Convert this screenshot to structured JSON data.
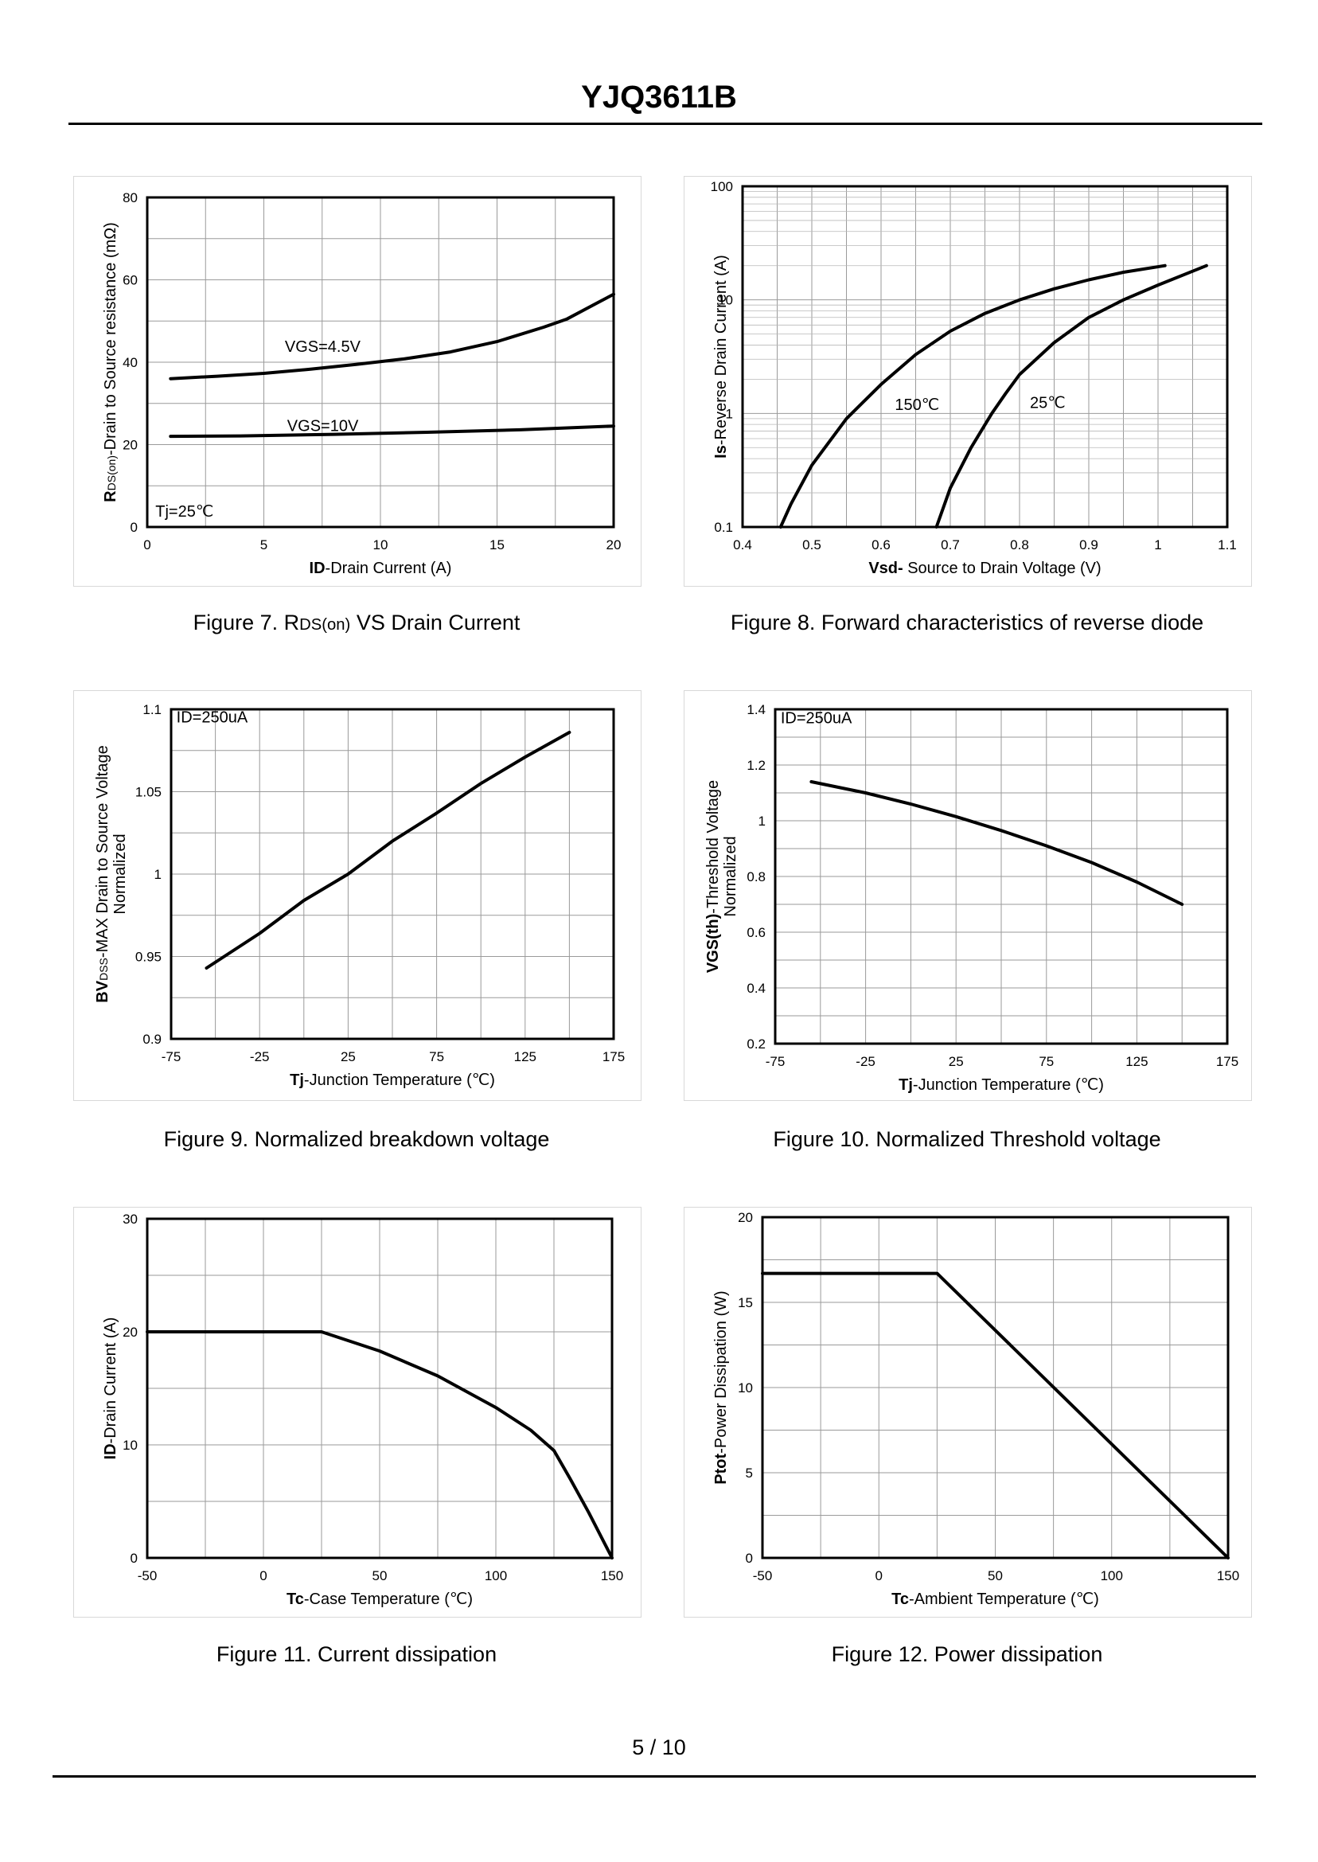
{
  "header": {
    "title": "YJQ3611B"
  },
  "footer": {
    "page": "5 / 10"
  },
  "colors": {
    "curve": "#000000",
    "grid": "#9a9a9a",
    "frame": "#000000"
  },
  "chart_data": [
    {
      "id": "fig7",
      "type": "line",
      "caption": {
        "text": "Figure 7.  RDS(on) VS Drain Current",
        "pre": "Figure 7.  R",
        "sub": "DS(on)",
        "post": " VS Drain Current"
      },
      "xlabel": {
        "bold": "ID",
        "rest": "-Drain Current (A)"
      },
      "ylabel": {
        "bold": "R",
        "sub": "DS(on)",
        "rest": "-Drain to Source resistance (mΩ)"
      },
      "xlim": [
        0,
        20
      ],
      "ylim": [
        0,
        80
      ],
      "xticks": [
        0,
        5,
        10,
        15,
        20
      ],
      "yticks": [
        0,
        20,
        40,
        60,
        80
      ],
      "xgrid": 8,
      "ygrid": 8,
      "annotations": [
        {
          "text": "VGS=4.5V",
          "x": 5.9,
          "y": 42.5
        },
        {
          "text": "VGS=10V",
          "x": 6.0,
          "y": 23.3
        },
        {
          "text": "Tj=25℃",
          "x": 0.35,
          "y": 2.5
        }
      ],
      "series": [
        {
          "label": "VGS=4.5V",
          "x": [
            1,
            3,
            5,
            7,
            9,
            11,
            13,
            15,
            17,
            18,
            19,
            20
          ],
          "y": [
            36,
            36.6,
            37.3,
            38.3,
            39.5,
            40.8,
            42.5,
            45,
            48.5,
            50.5,
            53.5,
            56.5
          ]
        },
        {
          "label": "VGS=10V",
          "x": [
            1,
            4,
            8,
            12,
            16,
            20
          ],
          "y": [
            22,
            22.1,
            22.5,
            23,
            23.6,
            24.5
          ]
        }
      ]
    },
    {
      "id": "fig8",
      "type": "line",
      "yscale": "log",
      "caption": {
        "text": "Figure 8.  Forward characteristics of reverse diode"
      },
      "xlabel": {
        "bold": "Vsd-",
        "rest": " Source to Drain Voltage (V)"
      },
      "ylabel": {
        "bold": "Is",
        "rest": "-Reverse  Drain Current (A)"
      },
      "xlim": [
        0.4,
        1.1
      ],
      "ylim": [
        0.1,
        100
      ],
      "xticks": [
        0.4,
        0.5,
        0.6,
        0.7,
        0.8,
        0.9,
        1,
        1.1
      ],
      "yticks": [
        0.1,
        1,
        10,
        100
      ],
      "xgrid": 14,
      "annotations": [
        {
          "text": "150℃",
          "x": 0.62,
          "y": 1.07
        },
        {
          "text": "25℃",
          "x": 0.815,
          "y": 1.12
        }
      ],
      "series": [
        {
          "label": "150℃",
          "x": [
            0.455,
            0.47,
            0.5,
            0.55,
            0.6,
            0.65,
            0.7,
            0.75,
            0.8,
            0.85,
            0.9,
            0.95,
            1.01
          ],
          "y": [
            0.1,
            0.16,
            0.35,
            0.9,
            1.8,
            3.3,
            5.3,
            7.6,
            10,
            12.5,
            15,
            17.5,
            20
          ]
        },
        {
          "label": "25℃",
          "x": [
            0.68,
            0.7,
            0.73,
            0.76,
            0.78,
            0.8,
            0.85,
            0.9,
            0.95,
            1.0,
            1.07
          ],
          "y": [
            0.1,
            0.22,
            0.5,
            1.0,
            1.5,
            2.2,
            4.2,
            7,
            10,
            13.5,
            20
          ]
        }
      ]
    },
    {
      "id": "fig9",
      "type": "line",
      "caption": {
        "text": "Figure 9.  Normalized breakdown voltage"
      },
      "xlabel": {
        "bold": "Tj",
        "rest": "-Junction  Temperature (℃)"
      },
      "ylabel": {
        "bold": "BV",
        "sub": "DSS",
        "rest": "-MAX Drain to Source Voltage",
        "line2": "Normalized"
      },
      "xlim": [
        -75,
        175
      ],
      "ylim": [
        0.9,
        1.1
      ],
      "xticks": [
        -75,
        -25,
        25,
        75,
        125,
        175
      ],
      "yticks": [
        0.9,
        0.95,
        1,
        1.05,
        1.1
      ],
      "xgrid": 10,
      "ygrid": 8,
      "annotations": [
        {
          "text": "ID=250uA",
          "x": -72,
          "y": 1.092
        }
      ],
      "series": [
        {
          "label": "BVDSS",
          "x": [
            -55,
            -25,
            0,
            25,
            50,
            75,
            100,
            125,
            150
          ],
          "y": [
            0.943,
            0.964,
            0.984,
            1.0,
            1.02,
            1.037,
            1.055,
            1.071,
            1.086
          ]
        }
      ]
    },
    {
      "id": "fig10",
      "type": "line",
      "caption": {
        "text": "Figure 10.  Normalized Threshold voltage"
      },
      "xlabel": {
        "bold": "Tj",
        "rest": "-Junction  Temperature (℃)"
      },
      "ylabel": {
        "bold": "VGS(th)",
        "rest": "-Threshold  Voltage",
        "line2": "Normalized"
      },
      "xlim": [
        -75,
        175
      ],
      "ylim": [
        0.2,
        1.4
      ],
      "xticks": [
        -75,
        -25,
        25,
        75,
        125,
        175
      ],
      "yticks": [
        0.2,
        0.4,
        0.6,
        0.8,
        1,
        1.2,
        1.4
      ],
      "xgrid": 10,
      "ygrid": 12,
      "annotations": [
        {
          "text": "ID=250uA",
          "x": -72,
          "y": 1.35
        }
      ],
      "series": [
        {
          "label": "VGS(th)",
          "x": [
            -55,
            -25,
            0,
            25,
            50,
            75,
            100,
            125,
            150
          ],
          "y": [
            1.14,
            1.1,
            1.06,
            1.015,
            0.965,
            0.91,
            0.85,
            0.78,
            0.7
          ]
        }
      ]
    },
    {
      "id": "fig11",
      "type": "line",
      "caption": {
        "text": "Figure 11.  Current dissipation"
      },
      "xlabel": {
        "bold": "Tc",
        "rest": "-Case Temperature (℃)"
      },
      "ylabel": {
        "bold": "ID",
        "rest": "-Drain Current (A)"
      },
      "xlim": [
        -50,
        150
      ],
      "ylim": [
        0,
        30
      ],
      "xticks": [
        -50,
        0,
        50,
        100,
        150
      ],
      "yticks": [
        0,
        10,
        20,
        30
      ],
      "xgrid": 8,
      "ygrid": 6,
      "annotations": [],
      "series": [
        {
          "label": "ID",
          "x": [
            -50,
            25,
            50,
            75,
            100,
            115,
            125,
            132,
            140,
            150
          ],
          "y": [
            20,
            20,
            18.3,
            16.1,
            13.3,
            11.3,
            9.5,
            7,
            4,
            0
          ]
        }
      ]
    },
    {
      "id": "fig12",
      "type": "line",
      "caption": {
        "text": "Figure 12.  Power dissipation"
      },
      "xlabel": {
        "bold": "Tc",
        "rest": "-Ambient Temperature (℃)"
      },
      "ylabel": {
        "bold": "Ptot",
        "rest": "-Power Dissipation (W)"
      },
      "xlim": [
        -50,
        150
      ],
      "ylim": [
        0,
        20
      ],
      "xticks": [
        -50,
        0,
        50,
        100,
        150
      ],
      "yticks": [
        0,
        5,
        10,
        15,
        20
      ],
      "xgrid": 8,
      "ygrid": 8,
      "annotations": [],
      "series": [
        {
          "label": "Ptot",
          "x": [
            -50,
            25,
            150
          ],
          "y": [
            16.7,
            16.7,
            0
          ]
        }
      ]
    }
  ]
}
